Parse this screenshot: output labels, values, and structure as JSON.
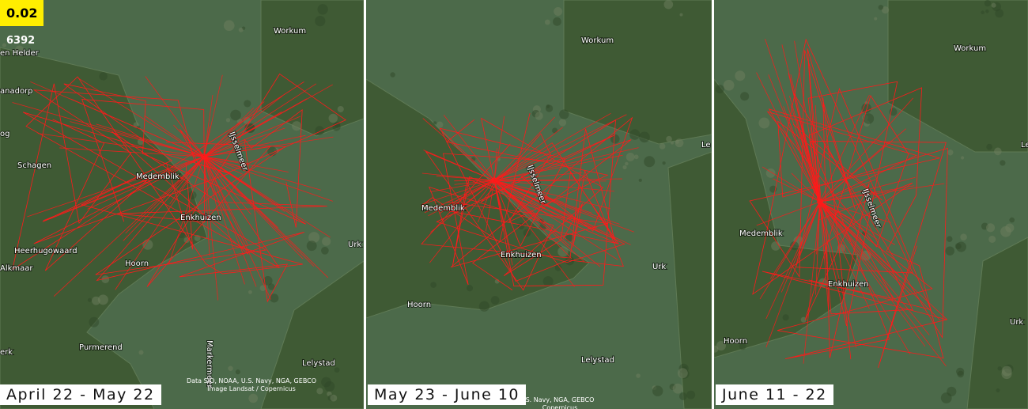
{
  "badge": "0.02",
  "count": "6392",
  "panels": [
    {
      "date_range": "April 22 - May 22",
      "places": [
        "en Helder",
        "anadorp",
        "og",
        "Schagen",
        "Medemblik",
        "Enkhuizen",
        "Heerhugowaard",
        "Alkmaar",
        "Hoorn",
        "Purmerend",
        "Markermeer",
        "Lelystad",
        "Urk",
        "IJsselmeer",
        "Workum",
        "erk"
      ],
      "attribution": [
        "Data SIO, NOAA, U.S. Navy, NGA, GEBCO",
        "Image Landsat / Copernicus"
      ]
    },
    {
      "date_range": "May 23 - June 10",
      "places": [
        "Workum",
        "Medemblik",
        "IJsselmeer",
        "Enkhuizen",
        "Hoorn",
        "Urk",
        "Lelystad",
        "Le"
      ],
      "attribution": [
        "S. Navy, NGA, GEBCO",
        "Copernicus"
      ]
    },
    {
      "date_range": "June 11 - 22",
      "places": [
        "Workum",
        "Le",
        "Medemblik",
        "IJsselmeer",
        "Enkhuizen",
        "Hoorn",
        "Urk"
      ],
      "attribution": []
    }
  ]
}
